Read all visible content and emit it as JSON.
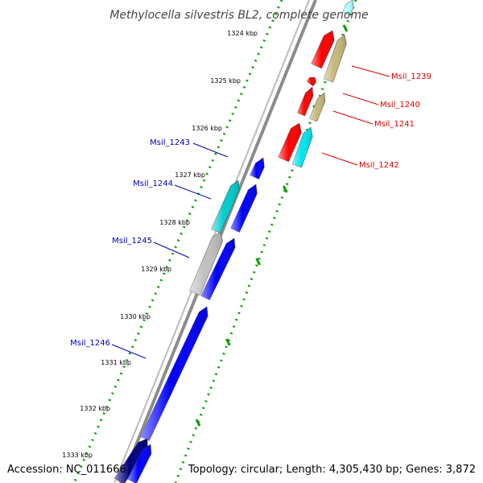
{
  "title": "Methylocella silvestris BL2, complete genome",
  "footer": {
    "accession": "Accession: NC_011666",
    "summary": "Topology: circular; Length: 4,305,430 bp; Genes: 3,872"
  },
  "colors": {
    "backbone": "#8c8c8c",
    "tick": "#00a000",
    "reverse_label": "#dd0000",
    "forward_label": "#0000bb"
  },
  "scale_labels": [
    "1324 kbp",
    "1325 kbp",
    "1326 kbp",
    "1327 kbp",
    "1328 kbp",
    "1329 kbp",
    "1330 kbp",
    "1331 kbp",
    "1332 kbp",
    "1333 kbp"
  ],
  "reverse_genes": [
    {
      "label": "Msil_1239",
      "color": "#ff0000",
      "strand": -1
    },
    {
      "label": "Msil_1240",
      "color": "#c4b77a",
      "strand": -1
    },
    {
      "label": "Msil_1241",
      "color": "#c4b77a",
      "strand": -1
    },
    {
      "label": "Msil_1242",
      "color": "#00e5ee",
      "strand": -1
    }
  ],
  "forward_genes": [
    {
      "label": "Msil_1243",
      "color": "#00cccc",
      "strand": 1
    },
    {
      "label": "Msil_1244",
      "color": "#0000ff",
      "strand": 1
    },
    {
      "label": "Msil_1245",
      "color": "#c0c0c0",
      "strand": 1
    },
    {
      "label": "Msil_1246",
      "color": "#0000ff",
      "strand": 1
    }
  ]
}
